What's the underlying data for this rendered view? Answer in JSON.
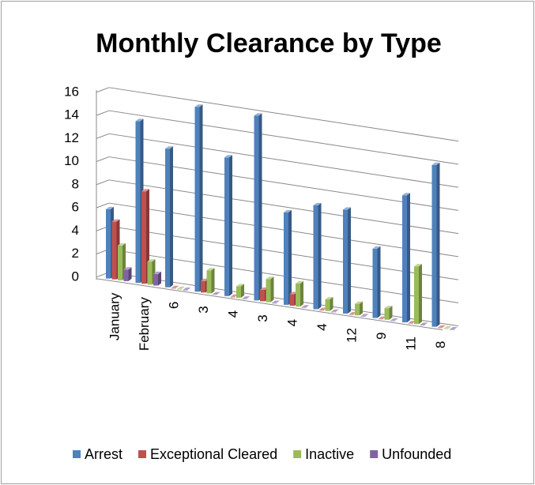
{
  "chart_data": {
    "type": "bar3d",
    "title": "Monthly Clearance by Type",
    "categories": [
      "January",
      "February",
      "6",
      "3",
      "4",
      "3",
      "4",
      "4",
      "12",
      "9",
      "11",
      "8"
    ],
    "series": [
      {
        "name": "Arrest",
        "color": "#4f81bd",
        "values": [
          6,
          14,
          12,
          16,
          12,
          16,
          8,
          9,
          9,
          6,
          11,
          14
        ]
      },
      {
        "name": "Exceptional Cleared",
        "color": "#c0504d",
        "values": [
          5,
          8,
          0,
          1,
          0,
          1,
          1,
          0,
          0,
          0,
          0,
          0
        ]
      },
      {
        "name": "Inactive",
        "color": "#9bbb59",
        "values": [
          3,
          2,
          0,
          2,
          1,
          2,
          2,
          1,
          1,
          1,
          5,
          0
        ]
      },
      {
        "name": "Unfounded",
        "color": "#8064a2",
        "values": [
          1,
          1,
          0,
          0,
          0,
          0,
          0,
          0,
          0,
          0,
          0,
          0
        ]
      }
    ],
    "ylim": [
      0,
      16
    ],
    "yticks": [
      0,
      2,
      4,
      6,
      8,
      10,
      12,
      14,
      16
    ],
    "grid": true,
    "legend": "bottom"
  }
}
